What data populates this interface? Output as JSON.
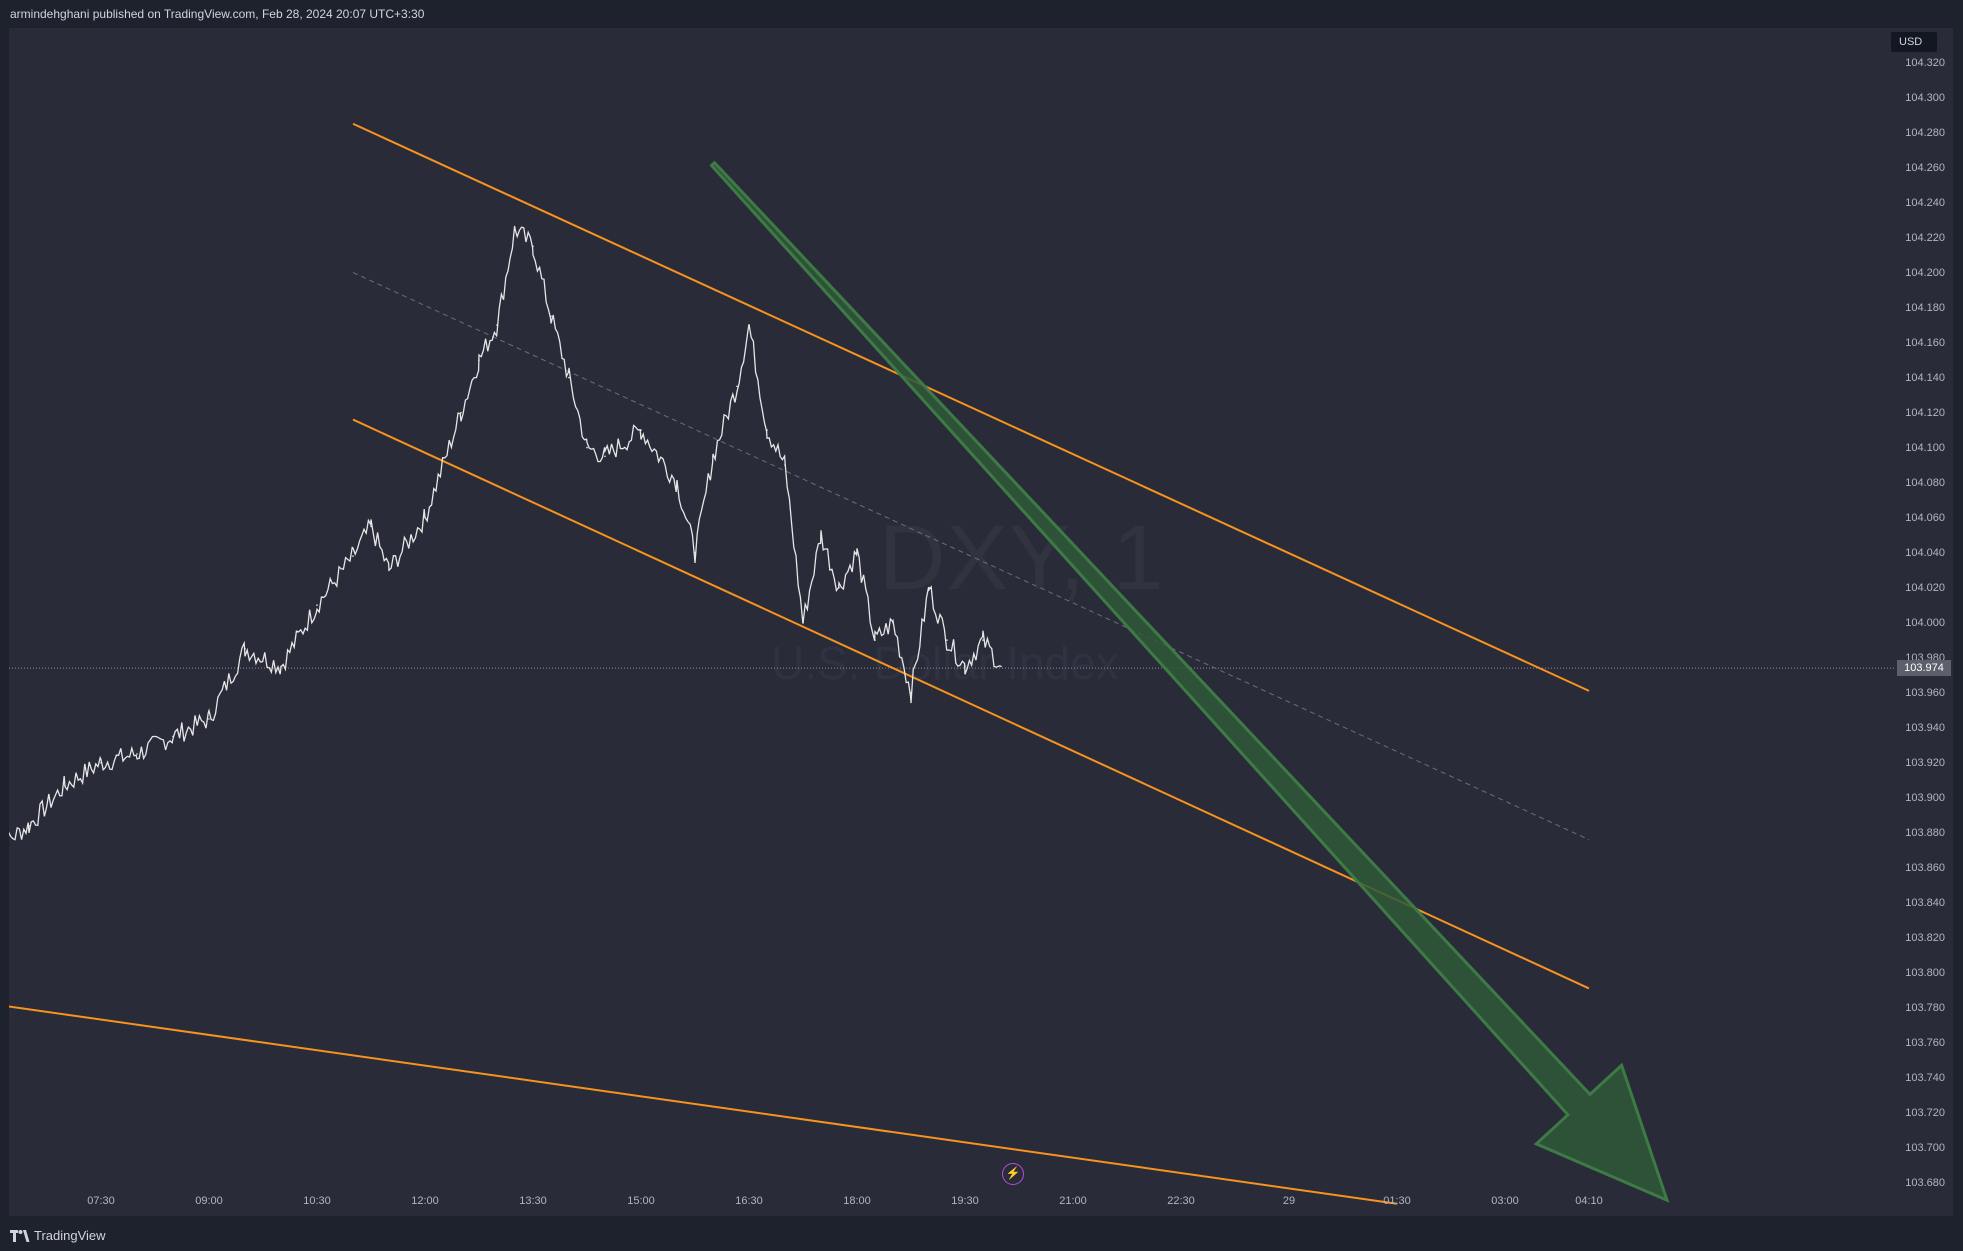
{
  "header": {
    "author": "armindehghani",
    "publish_text": "published on TradingView.com, Feb 28, 2024 20:07 UTC+3:30"
  },
  "watermark": {
    "symbol": "DXY, 1",
    "name": "U.S. Dollar Index"
  },
  "price_axis": {
    "currency": "USD",
    "last_price": "103.974",
    "ticks": [
      "104.320",
      "104.300",
      "104.280",
      "104.260",
      "104.240",
      "104.220",
      "104.200",
      "104.180",
      "104.160",
      "104.140",
      "104.120",
      "104.100",
      "104.080",
      "104.060",
      "104.040",
      "104.020",
      "104.000",
      "103.980",
      "103.960",
      "103.940",
      "103.920",
      "103.900",
      "103.880",
      "103.860",
      "103.840",
      "103.820",
      "103.800",
      "103.780",
      "103.760",
      "103.740",
      "103.720",
      "103.700",
      "103.680"
    ]
  },
  "time_axis": {
    "ticks": [
      "07:30",
      "09:00",
      "10:30",
      "12:00",
      "13:30",
      "15:00",
      "16:30",
      "18:00",
      "19:30",
      "21:00",
      "22:30",
      "29",
      "01:30",
      "03:00",
      "04:10"
    ]
  },
  "footer": {
    "brand": "TradingView"
  },
  "colors": {
    "background": "#292c38",
    "candle": "#e6e6e6",
    "trendline": "#f7931e",
    "arrow_fill": "#2f5937",
    "arrow_stroke": "#3d7a45",
    "midline": "#6b6e78"
  },
  "icons": {
    "lightning": "lightning-icon",
    "logo": "tradingview-logo-icon"
  },
  "chart_data": {
    "type": "line",
    "title": "DXY, 1",
    "series": [
      {
        "name": "U.S. Dollar Index",
        "x": [
          "06:00",
          "06:30",
          "07:00",
          "07:30",
          "08:00",
          "08:30",
          "09:00",
          "09:30",
          "10:00",
          "10:30",
          "11:00",
          "11:15",
          "11:30",
          "12:00",
          "12:30",
          "12:45",
          "13:00",
          "13:15",
          "13:30",
          "13:45",
          "14:00",
          "14:15",
          "14:30",
          "15:00",
          "15:30",
          "15:45",
          "16:00",
          "16:20",
          "16:30",
          "16:45",
          "17:00",
          "17:15",
          "17:30",
          "17:45",
          "18:00",
          "18:15",
          "18:30",
          "18:45",
          "19:00",
          "19:15",
          "19:30",
          "19:45",
          "20:00"
        ],
        "values": [
          103.87,
          103.884,
          103.907,
          103.92,
          103.925,
          103.935,
          103.945,
          103.985,
          103.975,
          104.01,
          104.038,
          104.055,
          104.03,
          104.06,
          104.12,
          104.15,
          104.17,
          104.225,
          104.215,
          104.175,
          104.14,
          104.1,
          104.095,
          104.11,
          104.08,
          104.04,
          104.095,
          104.135,
          104.17,
          104.11,
          104.09,
          104.0,
          104.05,
          104.02,
          104.04,
          103.99,
          104.0,
          103.96,
          104.02,
          103.99,
          103.975,
          103.99,
          103.975
        ]
      }
    ],
    "ylim": [
      103.665,
      104.33
    ],
    "y_scale": "linear",
    "grid": false,
    "annotations": [
      {
        "type": "channel-upper",
        "start": [
          "11:00",
          104.285
        ],
        "end": [
          "04:10",
          103.961
        ]
      },
      {
        "type": "channel-lower",
        "start": [
          "11:00",
          104.116
        ],
        "end": [
          "04:10",
          103.791
        ]
      },
      {
        "type": "channel-mid",
        "start": [
          "11:00",
          104.2
        ],
        "end": [
          "04:10",
          103.876
        ]
      },
      {
        "type": "support-line",
        "start": [
          "06:00",
          103.782
        ],
        "end": [
          "01:30",
          103.668
        ]
      },
      {
        "type": "bearish-arrow",
        "start": [
          "16:00",
          104.262
        ],
        "end": [
          "05:15",
          103.67
        ]
      }
    ]
  }
}
